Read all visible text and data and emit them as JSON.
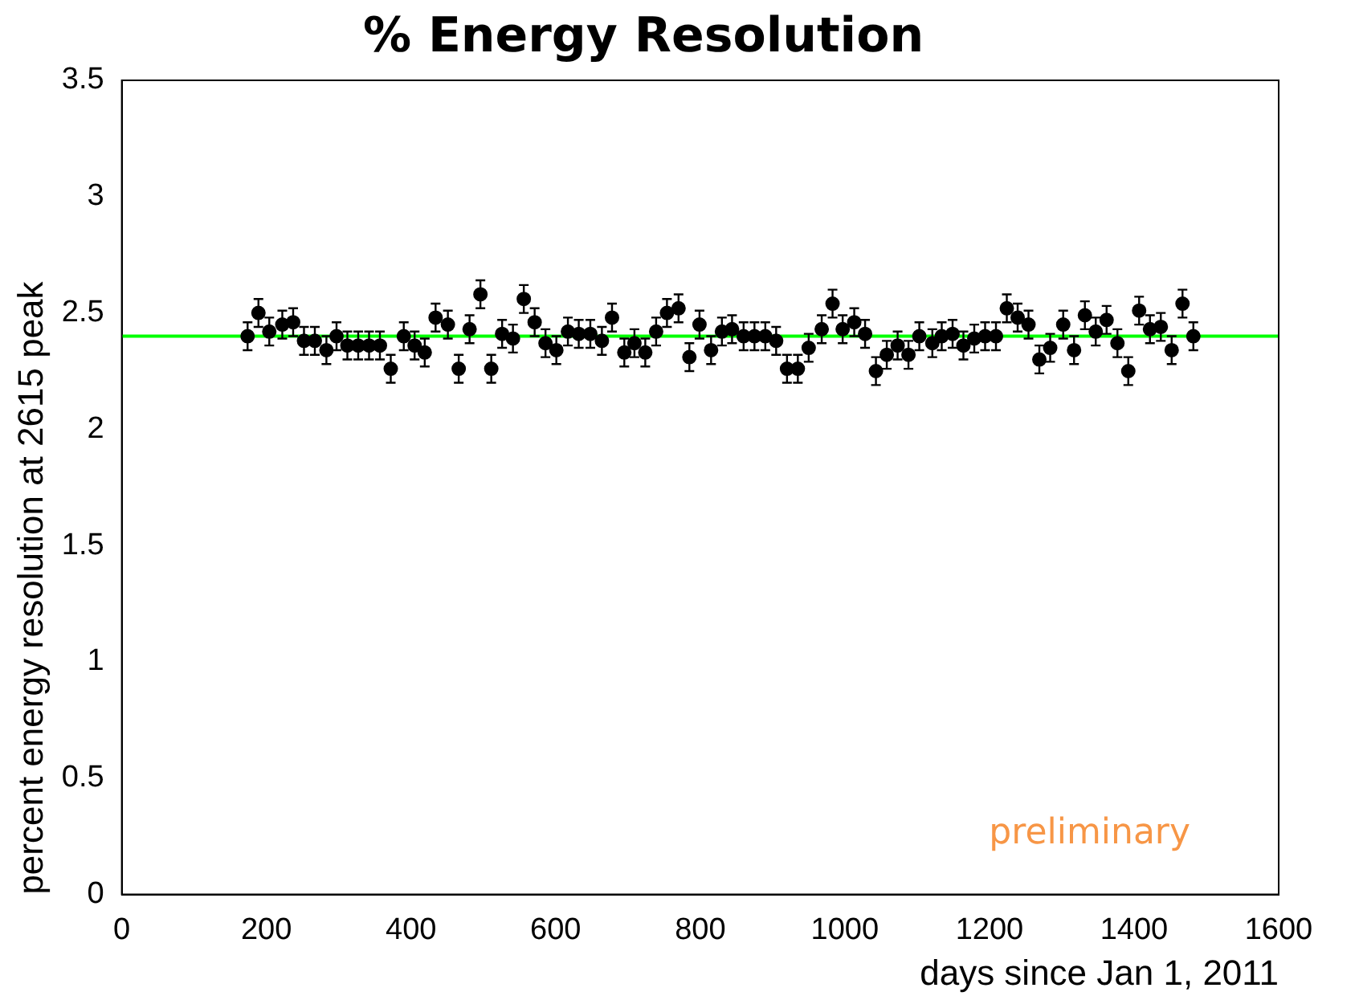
{
  "chart_data": {
    "type": "scatter",
    "title": "% Energy Resolution",
    "xlabel": "days since Jan 1, 2011",
    "ylabel": "percent energy resolution at 2615 peak",
    "xlim": [
      0,
      1600
    ],
    "xticks": [
      0,
      200,
      400,
      600,
      800,
      1000,
      1200,
      1400,
      1600
    ],
    "ylim": [
      0,
      3.5
    ],
    "yticks": [
      0,
      0.5,
      1,
      1.5,
      2,
      2.5,
      3,
      3.5
    ],
    "grid": false,
    "legend": false,
    "annotations": [
      "preliminary"
    ],
    "series": [
      {
        "color": "#000000",
        "marker": "circle",
        "x": [
          174,
          189,
          204,
          222,
          237,
          252,
          267,
          283,
          297,
          312,
          327,
          342,
          357,
          372,
          390,
          405,
          419,
          434,
          451,
          466,
          481,
          496,
          511,
          526,
          541,
          556,
          571,
          586,
          601,
          617,
          632,
          648,
          664,
          678,
          695,
          709,
          724,
          739,
          754,
          770,
          785,
          799,
          815,
          830,
          844,
          860,
          875,
          890,
          905,
          920,
          935,
          950,
          968,
          983,
          997,
          1013,
          1028,
          1043,
          1058,
          1073,
          1088,
          1103,
          1121,
          1134,
          1149,
          1164,
          1179,
          1194,
          1209,
          1224,
          1239,
          1254,
          1269,
          1284,
          1302,
          1317,
          1332,
          1347,
          1362,
          1377,
          1392,
          1407,
          1422,
          1437,
          1452,
          1467,
          1482
        ],
        "values": [
          2.4,
          2.5,
          2.42,
          2.45,
          2.46,
          2.38,
          2.38,
          2.34,
          2.4,
          2.36,
          2.36,
          2.36,
          2.36,
          2.26,
          2.4,
          2.36,
          2.33,
          2.48,
          2.45,
          2.26,
          2.43,
          2.58,
          2.26,
          2.41,
          2.39,
          2.56,
          2.46,
          2.37,
          2.34,
          2.42,
          2.41,
          2.41,
          2.38,
          2.48,
          2.33,
          2.37,
          2.33,
          2.42,
          2.5,
          2.52,
          2.31,
          2.45,
          2.34,
          2.42,
          2.43,
          2.4,
          2.4,
          2.4,
          2.38,
          2.26,
          2.26,
          2.35,
          2.43,
          2.54,
          2.43,
          2.46,
          2.41,
          2.25,
          2.32,
          2.36,
          2.32,
          2.4,
          2.37,
          2.4,
          2.41,
          2.36,
          2.39,
          2.4,
          2.4,
          2.52,
          2.48,
          2.45,
          2.3,
          2.35,
          2.45,
          2.34,
          2.49,
          2.42,
          2.47,
          2.37,
          2.25,
          2.51,
          2.43,
          2.44,
          2.34,
          2.54,
          2.4
        ],
        "errors": [
          0.06,
          0.06,
          0.06,
          0.06,
          0.06,
          0.06,
          0.06,
          0.06,
          0.06,
          0.06,
          0.06,
          0.06,
          0.06,
          0.06,
          0.06,
          0.06,
          0.06,
          0.06,
          0.06,
          0.06,
          0.06,
          0.06,
          0.06,
          0.06,
          0.06,
          0.06,
          0.06,
          0.06,
          0.06,
          0.06,
          0.06,
          0.06,
          0.06,
          0.06,
          0.06,
          0.06,
          0.06,
          0.06,
          0.06,
          0.06,
          0.06,
          0.06,
          0.06,
          0.06,
          0.06,
          0.06,
          0.06,
          0.06,
          0.06,
          0.06,
          0.06,
          0.06,
          0.06,
          0.06,
          0.06,
          0.06,
          0.06,
          0.06,
          0.06,
          0.06,
          0.06,
          0.06,
          0.06,
          0.06,
          0.06,
          0.06,
          0.06,
          0.06,
          0.06,
          0.06,
          0.06,
          0.06,
          0.06,
          0.06,
          0.06,
          0.06,
          0.06,
          0.06,
          0.06,
          0.06,
          0.06,
          0.06,
          0.06,
          0.06,
          0.06,
          0.06,
          0.06
        ]
      },
      {
        "type": "line",
        "color": "#00ff00",
        "marker": "none",
        "x": [
          0,
          1600
        ],
        "values": [
          2.4,
          2.4
        ]
      }
    ]
  }
}
